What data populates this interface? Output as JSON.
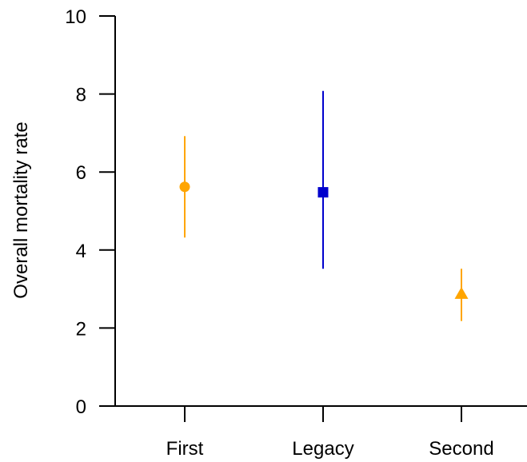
{
  "chart_data": {
    "type": "scatter",
    "title": "",
    "xlabel": "",
    "ylabel": "Overall mortality rate",
    "ylim": [
      0,
      10
    ],
    "yticks": [
      0,
      2,
      4,
      6,
      8,
      10
    ],
    "categories": [
      "First",
      "Legacy",
      "Second"
    ],
    "points": [
      {
        "category": "First",
        "value": 5.62,
        "lower": 4.32,
        "upper": 6.92,
        "color": "#FFA500",
        "marker": "circle"
      },
      {
        "category": "Legacy",
        "value": 5.48,
        "lower": 3.52,
        "upper": 8.08,
        "color": "#0000CD",
        "marker": "square"
      },
      {
        "category": "Second",
        "value": 2.88,
        "lower": 2.18,
        "upper": 3.52,
        "color": "#FFA500",
        "marker": "triangle"
      }
    ],
    "grid": false,
    "legend": "none"
  }
}
